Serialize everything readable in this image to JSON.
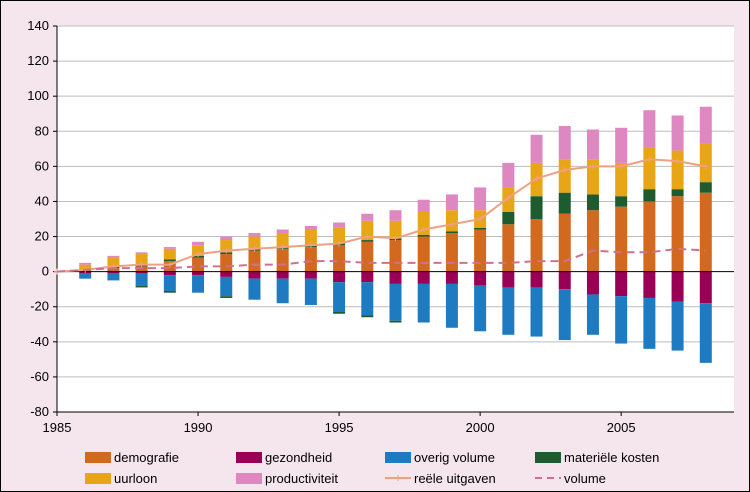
{
  "colors": {
    "background": "#f5e6ee",
    "plot_area": "#ffffff",
    "grid": "#bdbdbd",
    "demografie": "#d2691e",
    "gezondheid": "#990055",
    "overig_volume": "#1e7bc2",
    "materiele_kosten": "#1e5c30",
    "uurloon": "#e8a516",
    "productiviteit": "#de87c0",
    "reele_uitgaven": "#f0a080",
    "volume": "#d07090"
  },
  "chart_data": {
    "type": "bar",
    "stacked": true,
    "title": "",
    "xlabel": "",
    "ylabel": "",
    "x": [
      1986,
      1987,
      1988,
      1989,
      1990,
      1991,
      1992,
      1993,
      1994,
      1995,
      1996,
      1997,
      1998,
      1999,
      2000,
      2001,
      2002,
      2003,
      2004,
      2005,
      2006,
      2007,
      2008
    ],
    "ylim": [
      -80,
      140
    ],
    "y_ticks": [
      "140",
      "120",
      "100",
      "80",
      "60",
      "40",
      "20",
      "0",
      "-20",
      "-40",
      "-60",
      "-80"
    ],
    "y_tick_values": [
      140,
      120,
      100,
      80,
      60,
      40,
      20,
      0,
      -20,
      -40,
      -60,
      -80
    ],
    "xlim": [
      1985,
      2009
    ],
    "x_ticks": [
      "1985",
      "1990",
      "1995",
      "2000",
      "2005"
    ],
    "x_tick_values": [
      1985,
      1990,
      1995,
      2000,
      2005
    ],
    "grid": true,
    "legend_position": "bottom",
    "positive_series": [
      {
        "name": "demografie",
        "color_key": "demografie",
        "values": [
          1,
          2,
          3,
          6,
          8,
          10,
          12,
          13,
          14,
          15,
          17,
          18,
          20,
          22,
          24,
          27,
          30,
          33,
          35,
          37,
          40,
          43,
          45
        ]
      },
      {
        "name": "materiële kosten",
        "color_key": "materiele_kosten",
        "values": [
          0,
          1,
          1,
          1,
          1,
          1,
          1,
          1,
          1,
          1,
          1,
          1,
          1,
          1,
          1,
          7,
          13,
          12,
          9,
          6,
          7,
          4,
          6
        ]
      },
      {
        "name": "uurloon",
        "color_key": "uurloon",
        "values": [
          3,
          5,
          6,
          6,
          6,
          7,
          7,
          8,
          9,
          9,
          11,
          10,
          13,
          12,
          10,
          14,
          19,
          19,
          20,
          19,
          24,
          22,
          22
        ]
      },
      {
        "name": "productiviteit",
        "color_key": "productiviteit",
        "values": [
          1,
          1,
          1,
          1,
          2,
          2,
          2,
          2,
          2,
          3,
          4,
          6,
          7,
          9,
          13,
          14,
          16,
          19,
          17,
          20,
          21,
          20,
          21
        ]
      }
    ],
    "negative_series": [
      {
        "name": "gezondheid",
        "color_key": "gezondheid",
        "values": [
          -1,
          -1,
          -1,
          -2,
          -2,
          -3,
          -4,
          -4,
          -4,
          -6,
          -6,
          -7,
          -7,
          -7,
          -8,
          -9,
          -9,
          -10,
          -13,
          -14,
          -15,
          -17,
          -18
        ]
      },
      {
        "name": "overig volume",
        "color_key": "overig_volume",
        "values": [
          -3,
          -4,
          -7,
          -9,
          -10,
          -11,
          -12,
          -14,
          -15,
          -17,
          -19,
          -21,
          -22,
          -25,
          -26,
          -27,
          -28,
          -29,
          -23,
          -27,
          -29,
          -28,
          -34
        ]
      },
      {
        "name": "materiële kosten",
        "color_key": "materiele_kosten",
        "values": [
          0,
          0,
          -1,
          -1,
          0,
          -1,
          0,
          0,
          0,
          -1,
          -1,
          -1,
          0,
          0,
          0,
          0,
          0,
          0,
          0,
          0,
          0,
          0,
          0
        ]
      }
    ],
    "line_series": [
      {
        "name": "reële uitgaven",
        "color_key": "reele_uitgaven",
        "dashed": false,
        "x": [
          1985,
          1986,
          1987,
          1988,
          1989,
          1990,
          1991,
          1992,
          1993,
          1994,
          1995,
          1996,
          1997,
          1998,
          1999,
          2000,
          2001,
          2002,
          2003,
          2004,
          2005,
          2006,
          2007,
          2008
        ],
        "values": [
          0,
          1,
          3,
          4,
          4,
          10,
          12,
          13,
          14,
          15,
          16,
          20,
          19,
          24,
          27,
          30,
          42,
          53,
          58,
          60,
          60,
          64,
          63,
          60
        ]
      },
      {
        "name": "volume",
        "color_key": "volume",
        "dashed": true,
        "x": [
          1985,
          1986,
          1987,
          1988,
          1989,
          1990,
          1991,
          1992,
          1993,
          1994,
          1995,
          1996,
          1997,
          1998,
          1999,
          2000,
          2001,
          2002,
          2003,
          2004,
          2005,
          2006,
          2007,
          2008
        ],
        "values": [
          0,
          1,
          2,
          2,
          2,
          3,
          3,
          4,
          4,
          6,
          6,
          5,
          5,
          5,
          5,
          5,
          5,
          6,
          6,
          12,
          11,
          11,
          13,
          12
        ]
      }
    ],
    "legend": [
      {
        "label": "demografie",
        "color_key": "demografie",
        "kind": "box"
      },
      {
        "label": "gezondheid",
        "color_key": "gezondheid",
        "kind": "box"
      },
      {
        "label": "overig volume",
        "color_key": "overig_volume",
        "kind": "box"
      },
      {
        "label": "materiële kosten",
        "color_key": "materiele_kosten",
        "kind": "box"
      },
      {
        "label": "uurloon",
        "color_key": "uurloon",
        "kind": "box"
      },
      {
        "label": "productiviteit",
        "color_key": "productiviteit",
        "kind": "box"
      },
      {
        "label": "reële uitgaven",
        "color_key": "reele_uitgaven",
        "kind": "line"
      },
      {
        "label": "volume",
        "color_key": "volume",
        "kind": "dash"
      }
    ]
  }
}
